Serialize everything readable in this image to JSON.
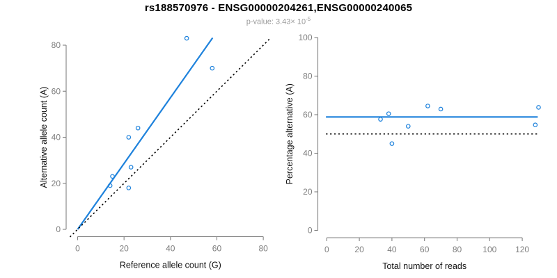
{
  "figure": {
    "title": "rs188570976 - ENSG00000204261,ENSG00000240065",
    "subtitle_prefix": "p-value: 3.43× 10",
    "subtitle_exponent": "-5"
  },
  "colors": {
    "blue": "#1E82DC",
    "black": "#000000",
    "axis": "#828282",
    "tick_text": "#7e7e7e",
    "title_text": "#111111",
    "subtitle_text": "#9a9a9a"
  },
  "chart_data": [
    {
      "id": "left-panel-scatter",
      "type": "scatter",
      "xlabel": "Reference allele count (G)",
      "ylabel": "Alternative allele count (A)",
      "xlim": [
        0,
        80
      ],
      "ylim": [
        0,
        80
      ],
      "xticks": [
        0,
        20,
        40,
        60,
        80
      ],
      "yticks": [
        0,
        20,
        40,
        60,
        80
      ],
      "grid": false,
      "points": [
        [
          47,
          83
        ],
        [
          58,
          70
        ],
        [
          26,
          44
        ],
        [
          22,
          40
        ],
        [
          23,
          27
        ],
        [
          22,
          18
        ],
        [
          15,
          23
        ],
        [
          14,
          19
        ]
      ],
      "lines": [
        {
          "name": "fit-line",
          "kind": "abline",
          "slope": 1.43,
          "intercept": 0,
          "x_min": 0,
          "color": "blue",
          "dash": false
        },
        {
          "name": "identity-line",
          "kind": "abline",
          "slope": 1,
          "intercept": 0,
          "color": "black",
          "dash": true
        }
      ]
    },
    {
      "id": "right-panel-scatter",
      "type": "scatter",
      "xlabel": "Total number of reads",
      "ylabel": "Percentage alternative (A)",
      "xlim": [
        0,
        130
      ],
      "ylim": [
        0,
        100
      ],
      "xticks": [
        0,
        20,
        40,
        60,
        80,
        100,
        120
      ],
      "yticks": [
        0,
        20,
        40,
        60,
        80,
        100
      ],
      "grid": false,
      "points": [
        [
          130,
          63.8
        ],
        [
          128,
          54.7
        ],
        [
          70,
          62.9
        ],
        [
          62,
          64.5
        ],
        [
          50,
          54
        ],
        [
          40,
          45
        ],
        [
          38,
          60.5
        ],
        [
          33,
          57.6
        ]
      ],
      "lines": [
        {
          "name": "mean-line",
          "kind": "hline",
          "value": 58.8,
          "color": "blue",
          "dash": false
        },
        {
          "name": "null-line",
          "kind": "hline",
          "value": 50,
          "color": "black",
          "dash": true
        }
      ]
    }
  ]
}
